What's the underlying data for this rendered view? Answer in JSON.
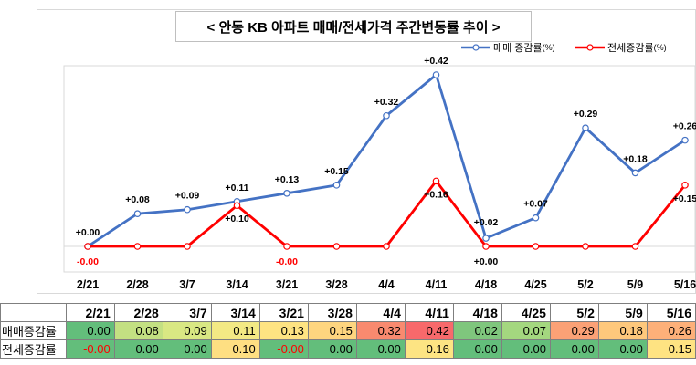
{
  "chart_data": {
    "type": "line",
    "title": "< 안동 KB 아파트 매매/전세가격 주간변동률 추이 >",
    "categories": [
      "2/21",
      "2/28",
      "3/7",
      "3/14",
      "3/21",
      "3/28",
      "4/4",
      "4/11",
      "4/18",
      "4/25",
      "5/2",
      "5/9",
      "5/16"
    ],
    "series": [
      {
        "name": "매매 증감률",
        "unit": "(%)",
        "color": "#4472c4",
        "values": [
          0.0,
          0.08,
          0.09,
          0.11,
          0.13,
          0.15,
          0.32,
          0.42,
          0.02,
          0.07,
          0.29,
          0.18,
          0.26
        ],
        "labels": [
          "+0.00",
          "+0.08",
          "+0.09",
          "+0.11",
          "+0.13",
          "+0.15",
          "+0.32",
          "+0.42",
          "+0.02",
          "+0.07",
          "+0.29",
          "+0.18",
          "+0.26"
        ]
      },
      {
        "name": "전세증감률",
        "unit": "(%)",
        "color": "#ff0000",
        "values": [
          0.0,
          0.0,
          0.0,
          0.1,
          0.0,
          0.0,
          0.0,
          0.16,
          0.0,
          0.0,
          0.0,
          0.0,
          0.15
        ],
        "labels": [
          "-0.00",
          "",
          "",
          "+0.10",
          "-0.00",
          "",
          "",
          "+0.16",
          "+0.00",
          "",
          "",
          "",
          "+0.15"
        ]
      }
    ],
    "ylim": [
      -0.04,
      0.47
    ],
    "grid": false,
    "legend": "top-right"
  },
  "table": {
    "header": [
      "2/21",
      "2/28",
      "3/7",
      "3/14",
      "3/21",
      "3/28",
      "4/4",
      "4/11",
      "4/18",
      "4/25",
      "5/2",
      "5/9",
      "5/16"
    ],
    "rows": [
      {
        "label": "매매증감률",
        "values": [
          "0.00",
          "0.08",
          "0.09",
          "0.11",
          "0.13",
          "0.15",
          "0.32",
          "0.42",
          "0.02",
          "0.07",
          "0.29",
          "0.18",
          "0.26"
        ],
        "colors": [
          "#63be7b",
          "#c3e082",
          "#d9e883",
          "#f3e984",
          "#fee382",
          "#fed57f",
          "#f98a6f",
          "#f8696b",
          "#7fc67d",
          "#a4d77f",
          "#fba176",
          "#fec87c",
          "#fdb079"
        ],
        "negative": [
          false,
          false,
          false,
          false,
          false,
          false,
          false,
          false,
          false,
          false,
          false,
          false,
          false
        ]
      },
      {
        "label": "전세증감률",
        "values": [
          "-0.00",
          "0.00",
          "0.00",
          "0.10",
          "-0.00",
          "0.00",
          "0.00",
          "0.16",
          "0.00",
          "0.00",
          "0.00",
          "0.00",
          "0.15"
        ],
        "colors": [
          "#63be7b",
          "#63be7b",
          "#63be7b",
          "#fedf82",
          "#63be7b",
          "#63be7b",
          "#63be7b",
          "#fde483",
          "#63be7b",
          "#63be7b",
          "#63be7b",
          "#63be7b",
          "#fee382"
        ],
        "negative": [
          true,
          false,
          false,
          false,
          true,
          false,
          false,
          false,
          false,
          false,
          false,
          false,
          false
        ]
      }
    ]
  }
}
